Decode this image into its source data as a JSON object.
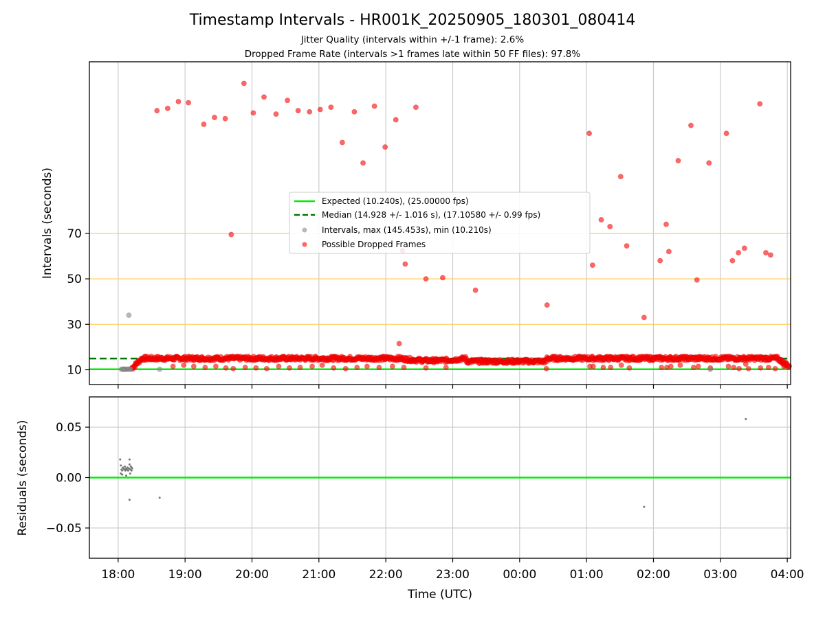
{
  "title": "Timestamp Intervals - HR001K_20250905_180301_080414",
  "subtitle_jitter": "Jitter Quality (intervals within +/-1 frame): 2.6%",
  "subtitle_dropped": "Dropped Frame Rate (intervals >1 frames late within 50 FF files): 97.8%",
  "colors": {
    "expected": "#00ee00",
    "median": "#007700",
    "intervals": "#888888",
    "dropped": "#ff0000",
    "reference_lines": "#ffcc55",
    "grid": "#cccccc"
  },
  "chart_data": [
    {
      "type": "scatter",
      "name": "intervals",
      "ylabel": "Intervals (seconds)",
      "xlabel": "",
      "x_unit": "hours since 18:00 UTC",
      "xlim": [
        -0.43,
        10.05
      ],
      "ylim": [
        3.5,
        145.5
      ],
      "y_ticks": [
        10,
        30,
        50,
        70
      ],
      "x_ticks": [
        0,
        1,
        2,
        3,
        4,
        5,
        6,
        7,
        8,
        9,
        10
      ],
      "x_tick_labels": [
        "18:00",
        "19:00",
        "20:00",
        "21:00",
        "22:00",
        "23:00",
        "00:00",
        "01:00",
        "02:00",
        "03:00",
        "04:00"
      ],
      "grid": "vertical",
      "reference_lines": [
        30,
        50,
        70
      ],
      "expected_value": 10.24,
      "median_value": 14.928,
      "legend": [
        "Expected (10.240s), (25.00000 fps)",
        "Median (14.928 +/- 1.016 s), (17.10580 +/- 0.99 fps)",
        "Intervals, max (145.453s), min (10.210s)",
        "Possible Dropped Frames"
      ],
      "legend_position": "center",
      "intervals_points": [
        [
          0.05,
          10.24
        ],
        [
          0.07,
          10.23
        ],
        [
          0.09,
          10.25
        ],
        [
          0.11,
          10.24
        ],
        [
          0.13,
          10.22
        ],
        [
          0.15,
          10.25
        ],
        [
          0.17,
          10.24
        ],
        [
          0.19,
          10.24
        ],
        [
          0.08,
          10.21
        ],
        [
          0.16,
          34.0
        ],
        [
          0.62,
          10.22
        ],
        [
          8.85,
          10.21
        ]
      ],
      "dropped_cluster_hours": [
        0.2,
        10.03
      ],
      "dropped_cluster_level": 15.0,
      "dropped_outliers": [
        [
          0.58,
          124.0
        ],
        [
          0.74,
          125.0
        ],
        [
          0.9,
          128.0
        ],
        [
          1.05,
          127.5
        ],
        [
          1.28,
          118.0
        ],
        [
          1.44,
          121.0
        ],
        [
          1.6,
          120.5
        ],
        [
          1.88,
          136.0
        ],
        [
          2.02,
          123.0
        ],
        [
          2.18,
          130.0
        ],
        [
          2.36,
          122.5
        ],
        [
          2.53,
          128.5
        ],
        [
          2.69,
          124.0
        ],
        [
          2.86,
          123.5
        ],
        [
          3.02,
          124.5
        ],
        [
          3.18,
          125.5
        ],
        [
          3.35,
          110.0
        ],
        [
          3.53,
          123.5
        ],
        [
          3.66,
          101.0
        ],
        [
          3.83,
          126.0
        ],
        [
          3.99,
          108.0
        ],
        [
          4.15,
          120.0
        ],
        [
          4.45,
          125.5
        ],
        [
          1.69,
          69.5
        ],
        [
          4.2,
          21.5
        ],
        [
          4.25,
          62.5
        ],
        [
          4.29,
          56.5
        ],
        [
          4.6,
          50.0
        ],
        [
          4.85,
          50.5
        ],
        [
          5.34,
          45.0
        ],
        [
          6.41,
          38.5
        ],
        [
          7.04,
          114.0
        ],
        [
          7.09,
          56.0
        ],
        [
          7.22,
          76.0
        ],
        [
          7.35,
          73.0
        ],
        [
          7.51,
          95.0
        ],
        [
          7.6,
          64.5
        ],
        [
          7.86,
          33.0
        ],
        [
          8.1,
          58.0
        ],
        [
          8.19,
          74.0
        ],
        [
          8.23,
          62.0
        ],
        [
          8.37,
          102.0
        ],
        [
          8.56,
          117.5
        ],
        [
          8.65,
          49.5
        ],
        [
          8.83,
          101.0
        ],
        [
          9.09,
          114.0
        ],
        [
          9.18,
          58.0
        ],
        [
          9.27,
          61.5
        ],
        [
          9.36,
          63.5
        ],
        [
          9.59,
          127.0
        ],
        [
          9.68,
          61.5
        ],
        [
          9.75,
          60.5
        ]
      ],
      "dropped_low_band": [
        [
          0.82,
          11.5
        ],
        [
          0.98,
          12.0
        ],
        [
          1.13,
          11.5
        ],
        [
          1.3,
          11.0
        ],
        [
          1.46,
          11.5
        ],
        [
          1.61,
          10.8
        ],
        [
          1.72,
          10.5
        ],
        [
          1.9,
          11.0
        ],
        [
          2.06,
          10.8
        ],
        [
          2.22,
          10.5
        ],
        [
          2.4,
          11.5
        ],
        [
          2.56,
          10.8
        ],
        [
          2.72,
          11.0
        ],
        [
          2.9,
          11.5
        ],
        [
          3.05,
          12.0
        ],
        [
          3.22,
          10.8
        ],
        [
          3.4,
          10.5
        ],
        [
          3.57,
          11.0
        ],
        [
          3.72,
          11.5
        ],
        [
          3.9,
          11.0
        ],
        [
          4.1,
          11.5
        ],
        [
          4.27,
          11.0
        ],
        [
          4.6,
          10.8
        ],
        [
          4.9,
          11.0
        ],
        [
          6.4,
          10.5
        ],
        [
          7.05,
          11.5
        ],
        [
          7.1,
          11.5
        ],
        [
          7.25,
          11.0
        ],
        [
          7.36,
          11.0
        ],
        [
          7.52,
          12.0
        ],
        [
          7.64,
          10.8
        ],
        [
          8.12,
          11.0
        ],
        [
          8.2,
          11.0
        ],
        [
          8.26,
          11.5
        ],
        [
          8.4,
          12.0
        ],
        [
          8.6,
          11.0
        ],
        [
          8.67,
          11.5
        ],
        [
          8.85,
          10.8
        ],
        [
          9.12,
          11.5
        ],
        [
          9.2,
          11.0
        ],
        [
          9.28,
          10.5
        ],
        [
          9.38,
          12.5
        ],
        [
          9.42,
          10.5
        ],
        [
          9.6,
          10.8
        ],
        [
          9.72,
          11.0
        ],
        [
          9.82,
          10.5
        ],
        [
          9.95,
          11.5
        ]
      ]
    },
    {
      "type": "scatter",
      "name": "residuals",
      "ylabel": "Residuals (seconds)",
      "xlabel": "Time (UTC)",
      "xlim": [
        -0.43,
        10.05
      ],
      "ylim": [
        -0.08,
        0.08
      ],
      "y_ticks": [
        0.05,
        0.0,
        -0.05
      ],
      "y_tick_labels": [
        "0.05",
        "0.00",
        "−0.05"
      ],
      "x_ticks": [
        0,
        1,
        2,
        3,
        4,
        5,
        6,
        7,
        8,
        9,
        10
      ],
      "x_tick_labels": [
        "18:00",
        "19:00",
        "20:00",
        "21:00",
        "22:00",
        "23:00",
        "00:00",
        "01:00",
        "02:00",
        "03:00",
        "04:00"
      ],
      "grid": "both",
      "zero_line": 0.0,
      "points": [
        [
          0.03,
          0.018
        ],
        [
          0.04,
          0.012
        ],
        [
          0.04,
          0.004
        ],
        [
          0.05,
          0.008
        ],
        [
          0.06,
          0.007
        ],
        [
          0.07,
          0.01
        ],
        [
          0.08,
          0.009
        ],
        [
          0.09,
          0.008
        ],
        [
          0.1,
          0.008
        ],
        [
          0.11,
          0.007
        ],
        [
          0.12,
          0.009
        ],
        [
          0.13,
          0.008
        ],
        [
          0.14,
          0.01
        ],
        [
          0.15,
          0.007
        ],
        [
          0.16,
          0.009
        ],
        [
          0.17,
          0.018
        ],
        [
          0.17,
          0.013
        ],
        [
          0.18,
          0.008
        ],
        [
          0.19,
          0.011
        ],
        [
          0.2,
          0.007
        ],
        [
          0.21,
          0.009
        ],
        [
          0.12,
          0.002
        ],
        [
          0.06,
          0.003
        ],
        [
          0.18,
          0.004
        ],
        [
          0.2,
          0.01
        ],
        [
          0.1,
          0.011
        ],
        [
          0.17,
          -0.022
        ],
        [
          0.62,
          -0.02
        ],
        [
          7.86,
          -0.029
        ],
        [
          9.38,
          0.058
        ]
      ]
    }
  ]
}
